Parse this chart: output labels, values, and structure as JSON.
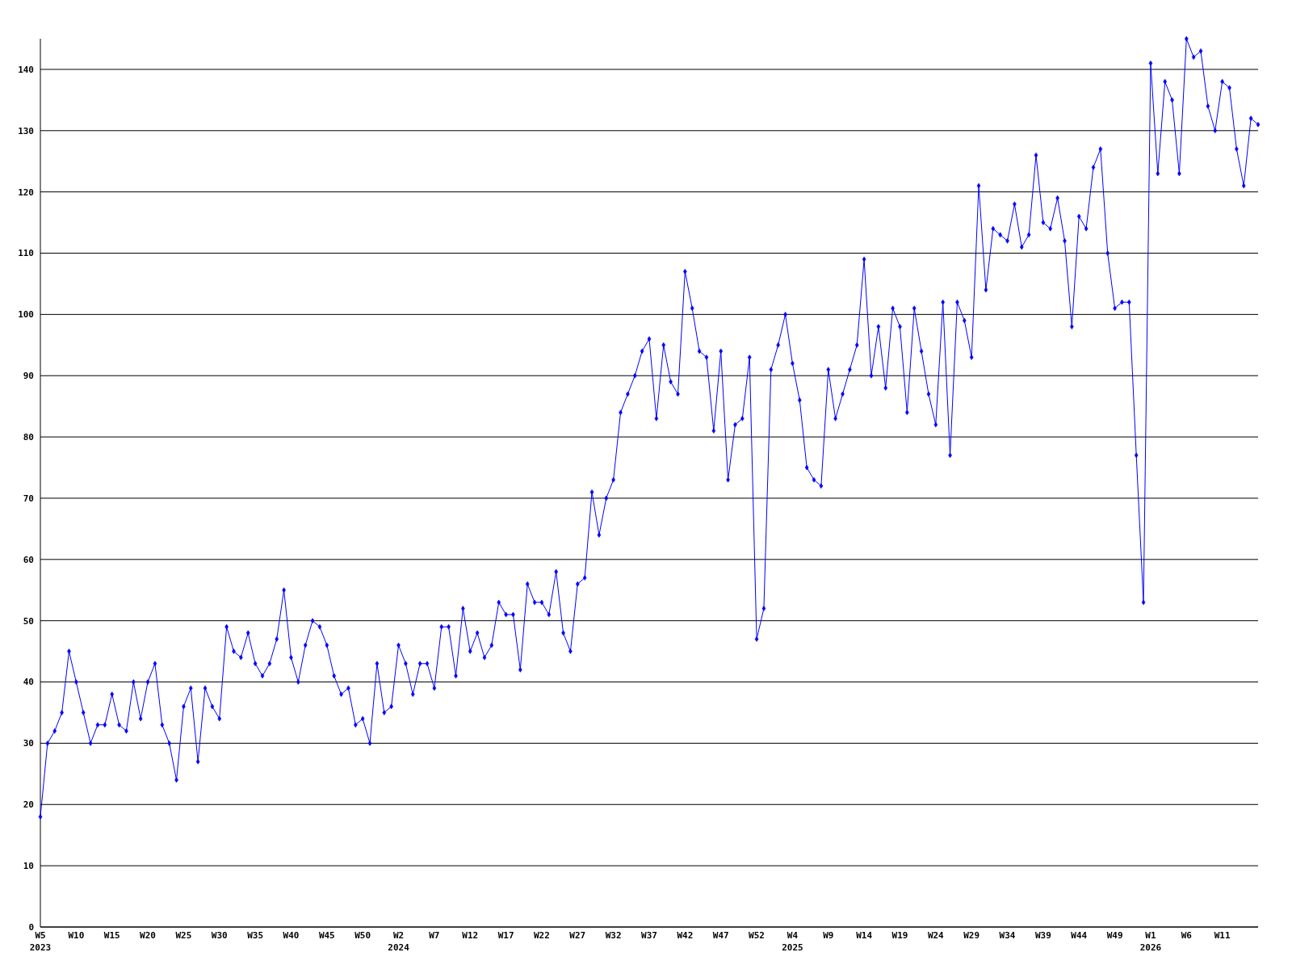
{
  "chart_data": {
    "type": "line",
    "categories": [
      "W5\n2023",
      null,
      null,
      null,
      null,
      "W10",
      null,
      null,
      null,
      null,
      "W15",
      null,
      null,
      null,
      null,
      "W20",
      null,
      null,
      null,
      null,
      "W25",
      null,
      null,
      null,
      null,
      "W30",
      null,
      null,
      null,
      null,
      "W35",
      null,
      null,
      null,
      null,
      "W40",
      null,
      null,
      null,
      null,
      "W45",
      null,
      null,
      null,
      null,
      "W50",
      null,
      null,
      null,
      null,
      "W2\n2024",
      null,
      null,
      null,
      null,
      "W7",
      null,
      null,
      null,
      null,
      "W12",
      null,
      null,
      null,
      null,
      "W17",
      null,
      null,
      null,
      null,
      "W22",
      null,
      null,
      null,
      null,
      "W27",
      null,
      null,
      null,
      null,
      "W32",
      null,
      null,
      null,
      null,
      "W37",
      null,
      null,
      null,
      null,
      "W42",
      null,
      null,
      null,
      null,
      "W47",
      null,
      null,
      null,
      null,
      "W52",
      null,
      null,
      null,
      null,
      "W4\n2025",
      null,
      null,
      null,
      null,
      "W9",
      null,
      null,
      null,
      null,
      "W14",
      null,
      null,
      null,
      null,
      "W19",
      null,
      null,
      null,
      null,
      "W24",
      null,
      null,
      null,
      null,
      "W29",
      null,
      null,
      null,
      null,
      "W34",
      null,
      null,
      null,
      null,
      "W39",
      null,
      null,
      null,
      null,
      "W44",
      null,
      null,
      null,
      null,
      "W49",
      null,
      null,
      null,
      null,
      "W1\n2026",
      null,
      null,
      null,
      null,
      "W6",
      null,
      null,
      null,
      null,
      "W11",
      null,
      null,
      null,
      null,
      null
    ],
    "series": [
      {
        "color": "#0000ff",
        "values": [
          18,
          30,
          32,
          35,
          45,
          40,
          35,
          30,
          33,
          33,
          38,
          33,
          32,
          40,
          34,
          40,
          43,
          33,
          30,
          24,
          36,
          39,
          27,
          39,
          36,
          34,
          49,
          45,
          44,
          48,
          43,
          41,
          43,
          47,
          55,
          44,
          40,
          46,
          50,
          49,
          46,
          41,
          38,
          39,
          33,
          34,
          30,
          43,
          35,
          36,
          46,
          43,
          38,
          43,
          43,
          39,
          49,
          49,
          41,
          52,
          45,
          48,
          44,
          46,
          53,
          51,
          51,
          42,
          56,
          53,
          53,
          51,
          58,
          48,
          45,
          56,
          57,
          71,
          64,
          70,
          73,
          84,
          87,
          90,
          94,
          96,
          83,
          95,
          89,
          87,
          107,
          101,
          94,
          93,
          81,
          94,
          73,
          82,
          83,
          93,
          47,
          52,
          91,
          95,
          100,
          92,
          86,
          75,
          73,
          72,
          91,
          83,
          87,
          91,
          95,
          109,
          90,
          98,
          88,
          101,
          98,
          84,
          101,
          94,
          87,
          82,
          102,
          77,
          102,
          99,
          93,
          121,
          104,
          114,
          113,
          112,
          118,
          111,
          113,
          126,
          115,
          114,
          119,
          112,
          98,
          116,
          114,
          124,
          127,
          110,
          101,
          102,
          102,
          77,
          53,
          141,
          123,
          138,
          135,
          123,
          145,
          142,
          143,
          134,
          130,
          138,
          137,
          127,
          121,
          132,
          131
        ]
      }
    ],
    "ylim": [
      0,
      145
    ],
    "yticks": [
      0,
      10,
      20,
      30,
      40,
      50,
      60,
      70,
      80,
      90,
      100,
      110,
      120,
      130,
      140
    ],
    "grid": "y",
    "marker": "diamond",
    "line_style": "solid"
  }
}
